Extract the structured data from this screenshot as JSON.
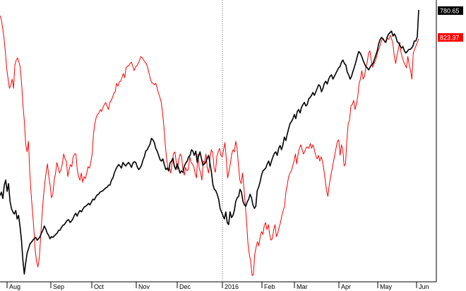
{
  "chart_data": {
    "type": "line",
    "title": "",
    "xlabel": "",
    "ylabel": "",
    "x_ticks": [
      "Aug",
      "Sep",
      "Oct",
      "Nov",
      "Dec",
      "2016",
      "Feb",
      "Mar",
      "Apr",
      "May",
      "Jun"
    ],
    "grid": false,
    "series": [
      {
        "color": "#000000",
        "last_value_label": "780.65",
        "values": [
          277,
          272,
          281,
          262,
          255,
          271,
          260,
          285,
          295,
          300,
          303,
          298,
          310,
          305,
          320,
          340,
          368,
          388,
          372,
          358,
          352,
          345,
          343,
          340,
          338,
          336,
          340,
          338,
          335,
          330,
          326,
          320,
          324,
          330,
          333,
          338,
          335,
          336,
          334,
          332,
          330,
          326,
          326,
          322,
          319,
          318,
          315,
          312,
          311,
          315,
          313,
          310,
          305,
          302,
          306,
          301,
          298,
          300,
          296,
          293,
          292,
          290,
          288,
          290,
          286,
          282,
          283,
          279,
          276,
          275,
          272,
          271,
          270,
          268,
          266,
          265,
          262,
          262,
          255,
          252,
          245,
          240,
          236,
          233,
          235,
          238,
          230,
          233,
          235,
          232,
          230,
          233,
          237,
          231,
          229,
          230,
          236,
          240,
          238,
          234,
          227,
          222,
          214,
          212,
          208,
          204,
          196,
          198,
          202,
          210,
          214,
          220,
          226,
          228,
          225,
          233,
          240,
          238,
          242,
          231,
          228,
          224,
          235,
          240,
          232,
          238,
          245,
          242,
          244,
          235,
          231,
          228,
          222,
          220,
          212,
          214,
          220,
          214,
          230,
          221,
          215,
          225,
          234,
          232,
          230,
          224,
          220,
          232,
          244,
          262,
          268,
          270,
          275,
          282,
          295,
          300,
          305,
          310,
          300,
          315,
          318,
          300,
          308,
          305,
          298,
          285,
          280,
          278,
          268,
          272,
          285,
          290,
          292,
          286,
          282,
          275,
          280,
          290,
          295,
          292,
          270,
          265,
          258,
          248,
          242,
          240,
          238,
          232,
          228,
          235,
          228,
          222,
          217,
          215,
          220,
          210,
          206,
          212,
          205,
          194,
          199,
          190,
          182,
          175,
          172,
          168,
          162,
          168,
          158,
          155,
          160,
          152,
          148,
          145,
          150,
          148,
          140,
          138,
          135,
          131,
          135,
          130,
          125,
          120,
          122,
          130,
          125,
          118,
          115,
          119,
          112,
          108,
          106,
          112,
          108,
          104,
          100,
          96,
          94,
          88,
          85,
          90,
          92,
          102,
          106,
          112,
          108,
          101,
          95,
          88,
          80,
          73,
          75,
          79,
          85,
          90,
          94,
          96,
          99,
          95,
          92,
          90,
          84,
          78,
          72,
          62,
          56,
          53,
          55,
          58,
          60,
          52,
          48,
          46,
          44,
          51,
          48,
          52,
          59,
          61,
          65,
          68,
          66,
          72,
          75,
          73,
          70,
          70,
          68,
          65,
          58,
          58,
          52,
          14
        ]
      },
      {
        "color": "#ff0000",
        "last_value_label": "823.37",
        "values": [
          22,
          28,
          40,
          55,
          75,
          98,
          112,
          125,
          120,
          112,
          125,
          92,
          85,
          82,
          88,
          96,
          120,
          150,
          172,
          205,
          215,
          200,
          245,
          275,
          300,
          325,
          355,
          370,
          378,
          365,
          335,
          305,
          280,
          260,
          245,
          232,
          250,
          262,
          280,
          275,
          255,
          245,
          230,
          238,
          245,
          240,
          232,
          218,
          225,
          228,
          250,
          240,
          233,
          236,
          222,
          218,
          218,
          240,
          250,
          255,
          245,
          258,
          250,
          253,
          245,
          236,
          238,
          230,
          218,
          190,
          175,
          166,
          162,
          160,
          155,
          158,
          152,
          148,
          145,
          150,
          155,
          146,
          142,
          138,
          132,
          130,
          118,
          122,
          116,
          115,
          110,
          104,
          110,
          96,
          94,
          93,
          90,
          88,
          94,
          100,
          95,
          93,
          90,
          85,
          80,
          82,
          85,
          88,
          90,
          96,
          104,
          112,
          117,
          118,
          120,
          118,
          125,
          132,
          138,
          145,
          160,
          180,
          205,
          225,
          240,
          238,
          245,
          232,
          218,
          215,
          228,
          240,
          225,
          218,
          222,
          240,
          248,
          237,
          242,
          240,
          222,
          230,
          232,
          236,
          245,
          252,
          218,
          238,
          244,
          255,
          228,
          230,
          218,
          238,
          245,
          223,
          212,
          216,
          238,
          244,
          222,
          215,
          210,
          220,
          222,
          212,
          202,
          225,
          252,
          242,
          232,
          218,
          212,
          215,
          200,
          210,
          235,
          255,
          260,
          245,
          265,
          290,
          315,
          345,
          360,
          370,
          390,
          389,
          360,
          350,
          342,
          348,
          335,
          328,
          332,
          320,
          315,
          325,
          318,
          332,
          340,
          338,
          325,
          318,
          335,
          330,
          322,
          315,
          305,
          298,
          292,
          272,
          262,
          250,
          245,
          242,
          235,
          228,
          218,
          232,
          218,
          210,
          205,
          212,
          218,
          214,
          209,
          208,
          210,
          203,
          210,
          205,
          212,
          220,
          225,
          220,
          228,
          222,
          228,
          240,
          255,
          270,
          278,
          262,
          250,
          240,
          230,
          220,
          210,
          200,
          198,
          220,
          205,
          212,
          235,
          232,
          198,
          175,
          170,
          150,
          148,
          142,
          155,
          148,
          138,
          118,
          112,
          100,
          112,
          108,
          95,
          88,
          75,
          72,
          85,
          95,
          90,
          86,
          80,
          72,
          68,
          60,
          56,
          55,
          60,
          57,
          54,
          56,
          50,
          55,
          62,
          80,
          90,
          78,
          70,
          60,
          75,
          82,
          88,
          92,
          96,
          80,
          92,
          100,
          112,
          75,
          70,
          65,
          60,
          55
        ]
      }
    ]
  }
}
